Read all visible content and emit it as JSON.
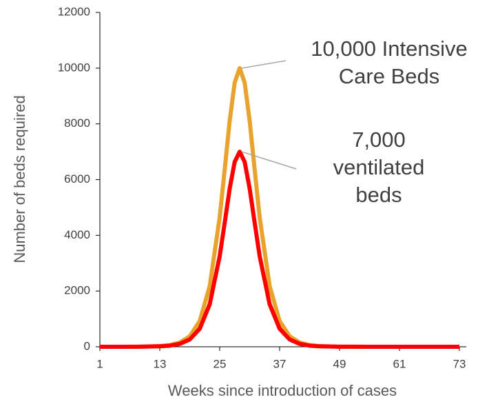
{
  "chart_data": {
    "type": "line",
    "xlabel": "Weeks since introduction of cases",
    "ylabel": "Number of beds required",
    "x": [
      1,
      5,
      9,
      13,
      15,
      17,
      19,
      21,
      23,
      25,
      26,
      27,
      28,
      29,
      30,
      31,
      32,
      33,
      35,
      37,
      39,
      41,
      43,
      45,
      49,
      55,
      61,
      67,
      73
    ],
    "series": [
      {
        "name": "Intensive Care Beds",
        "color": "#e9a22b",
        "values": [
          0,
          0,
          4,
          24,
          59,
          150,
          376,
          924,
          2180,
          4650,
          6360,
          8110,
          9480,
          10000,
          9480,
          8110,
          6360,
          4650,
          2180,
          924,
          376,
          150,
          59,
          24,
          4,
          0,
          0,
          0,
          0
        ]
      },
      {
        "name": "ventilated beds",
        "color": "#ff0000",
        "values": [
          0,
          0,
          3,
          17,
          41,
          105,
          263,
          647,
          1526,
          3255,
          4452,
          5677,
          6636,
          7000,
          6636,
          5677,
          4452,
          3255,
          1526,
          647,
          263,
          105,
          41,
          17,
          3,
          0,
          0,
          0,
          0
        ]
      }
    ],
    "xlim": [
      1,
      73
    ],
    "xticks": [
      1,
      13,
      25,
      37,
      49,
      61,
      73
    ],
    "ylim": [
      0,
      12000
    ],
    "yticks": [
      0,
      2000,
      4000,
      6000,
      8000,
      10000,
      12000
    ],
    "annotations": [
      {
        "lines": [
          "10,000 Intensive",
          "Care Beds"
        ],
        "x": 29,
        "y": 10000
      },
      {
        "lines": [
          "7,000",
          "ventilated",
          "beds"
        ],
        "x": 29,
        "y": 7000
      }
    ]
  }
}
